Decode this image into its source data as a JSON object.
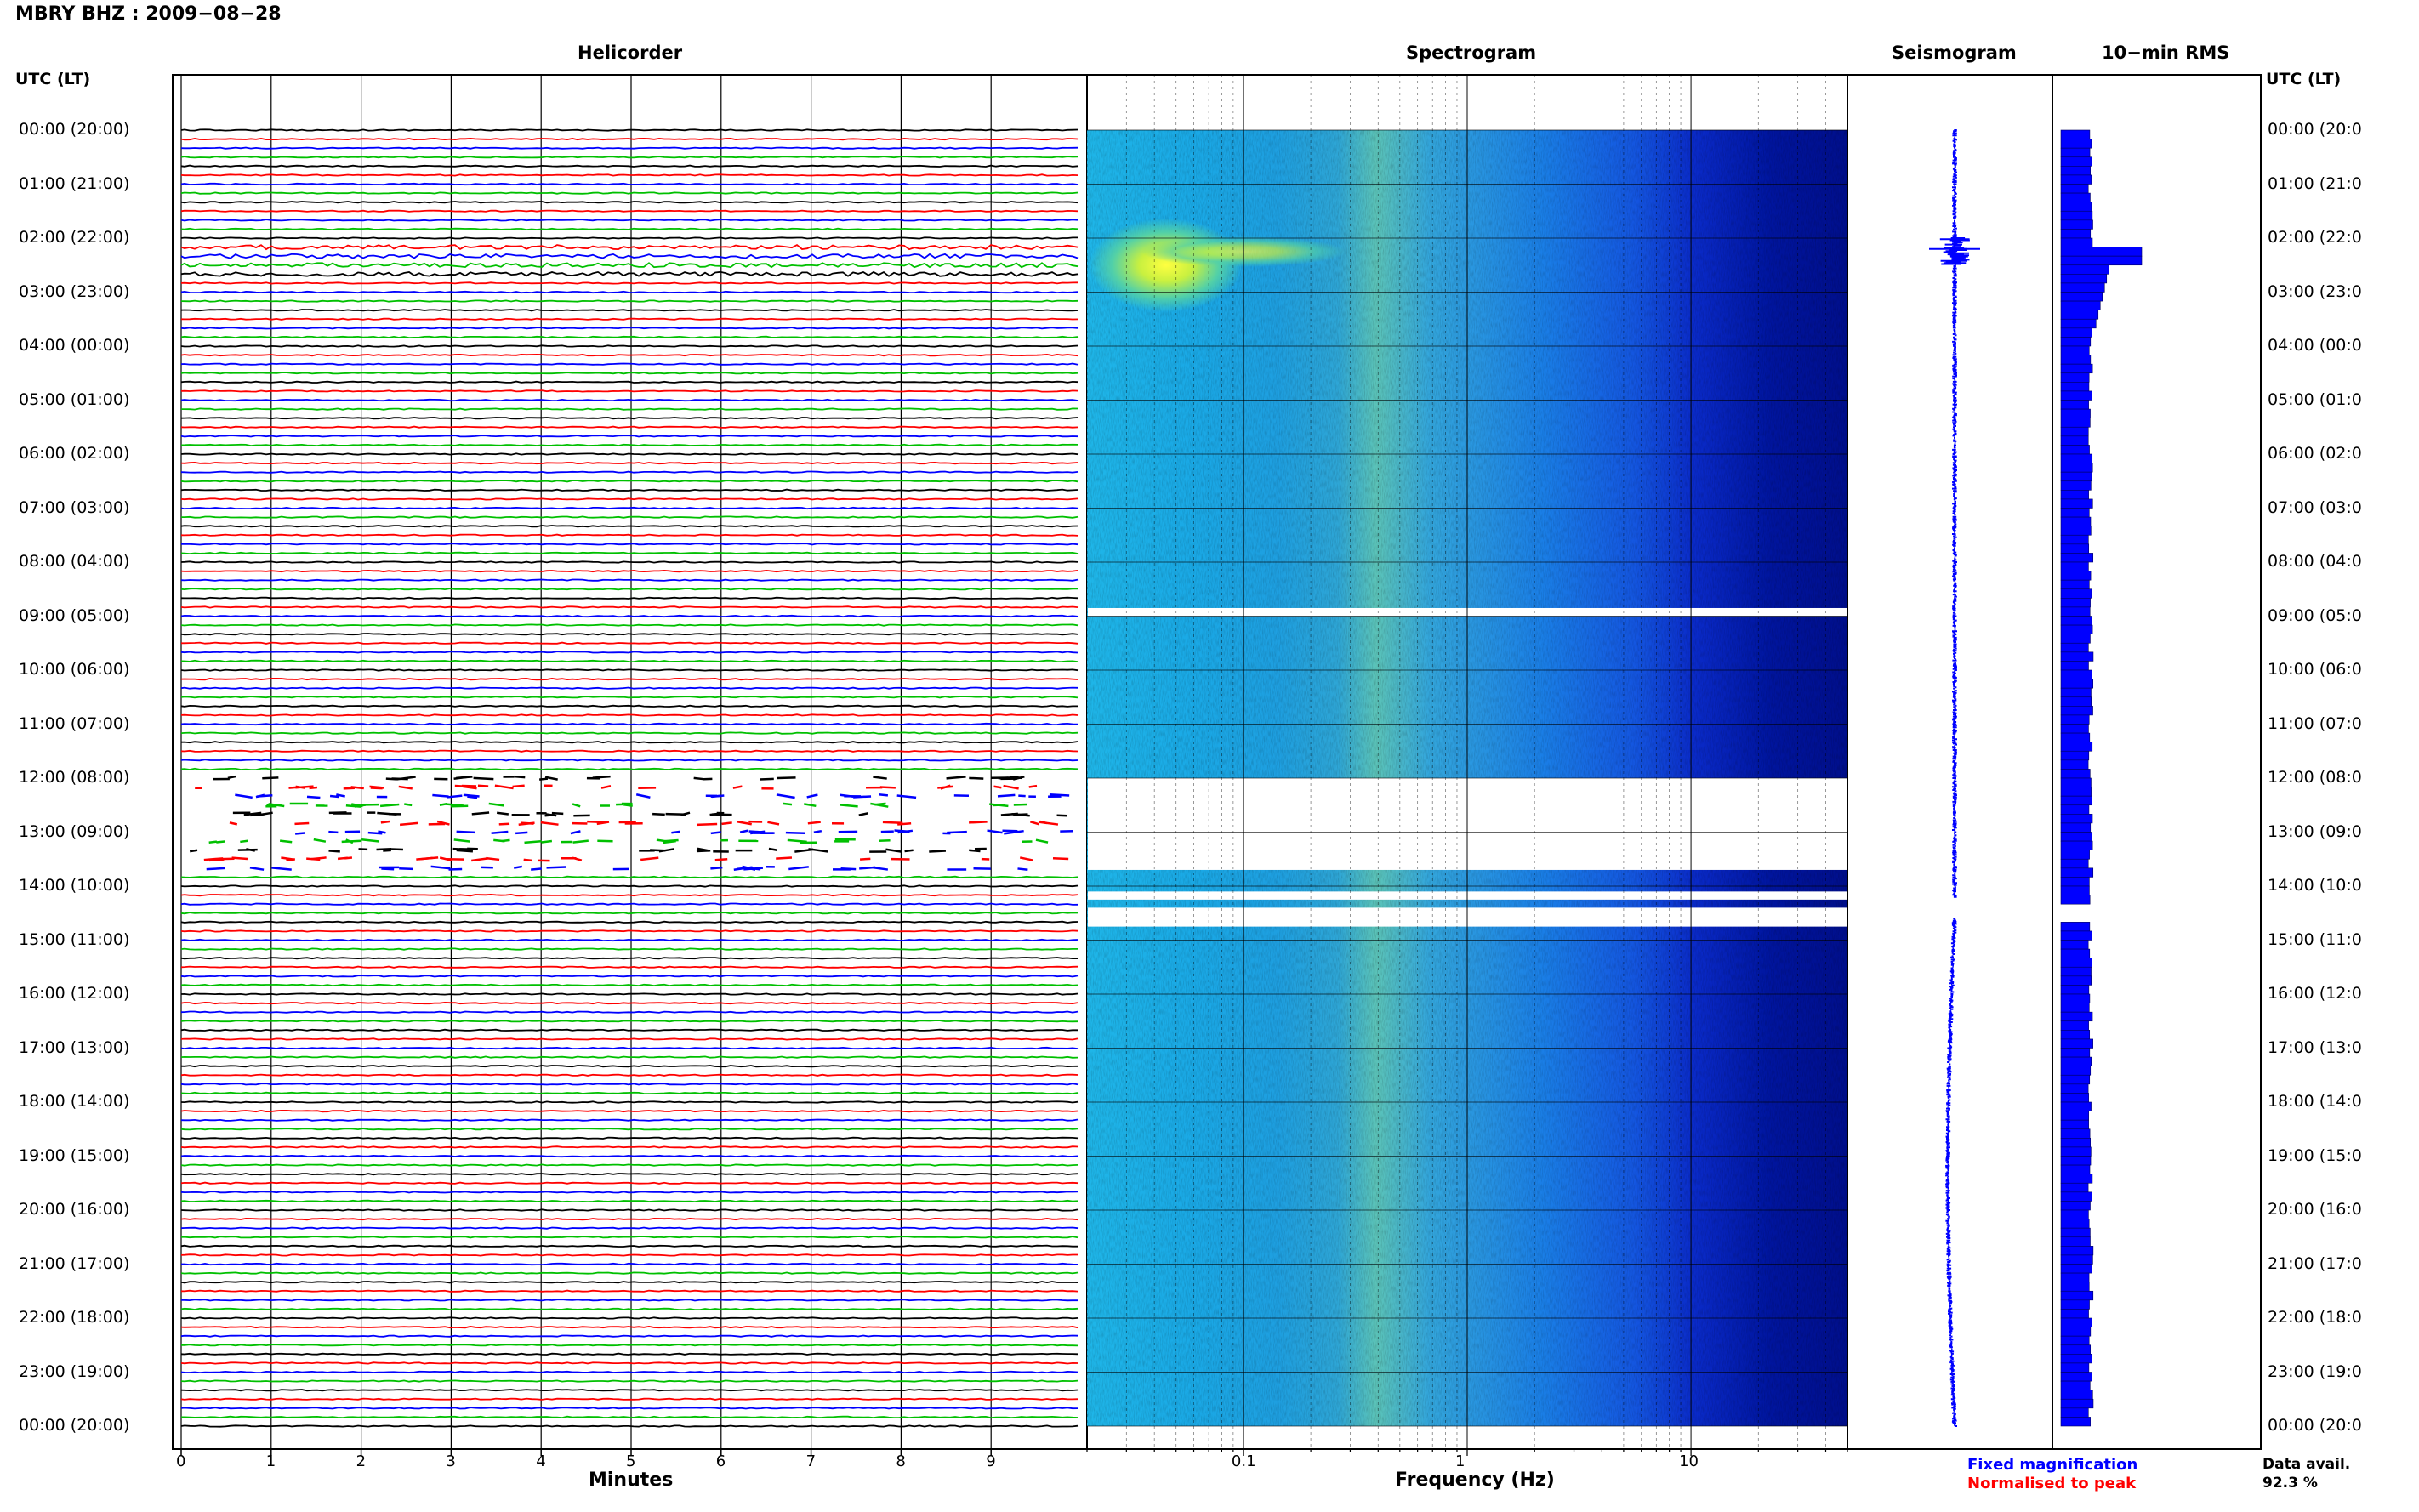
{
  "header": {
    "title": "MBRY BHZ : 2009−08−28",
    "utc_label": "UTC (LT)"
  },
  "panels": {
    "helicorder": "Helicorder",
    "spectrogram": "Spectrogram",
    "seismogram": "Seismogram",
    "rms": "10−min RMS"
  },
  "chart_data": {
    "type": "heatmap",
    "time_labels": [
      "00:00 (20:00)",
      "01:00 (21:00)",
      "02:00 (22:00)",
      "03:00 (23:00)",
      "04:00 (00:00)",
      "05:00 (01:00)",
      "06:00 (02:00)",
      "07:00 (03:00)",
      "08:00 (04:00)",
      "09:00 (05:00)",
      "10:00 (06:00)",
      "11:00 (07:00)",
      "12:00 (08:00)",
      "13:00 (09:00)",
      "14:00 (10:00)",
      "15:00 (11:00)",
      "16:00 (12:00)",
      "17:00 (13:00)",
      "18:00 (14:00)",
      "19:00 (15:00)",
      "20:00 (16:00)",
      "21:00 (17:00)",
      "22:00 (18:00)",
      "23:00 (19:00)",
      "00:00 (20:00)"
    ],
    "helicorder": {
      "xlabel": "Minutes",
      "x_ticks": [
        "0",
        "1",
        "2",
        "3",
        "4",
        "5",
        "6",
        "7",
        "8",
        "9"
      ],
      "xlim": [
        0,
        10
      ],
      "traces_per_hour": 6,
      "trace_colors": [
        "#000000",
        "#ff0000",
        "#0000ff",
        "#00c000"
      ]
    },
    "spectrogram": {
      "xlabel": "Frequency (Hz)",
      "x_ticks": [
        "0.1",
        "1",
        "10"
      ],
      "x_scale": "log",
      "xlim": [
        0.02,
        50
      ],
      "colormap": "jet",
      "gaps_hours": [
        [
          8.85,
          9.0
        ],
        [
          12.0,
          13.7
        ],
        [
          14.1,
          14.25
        ],
        [
          14.4,
          14.75
        ]
      ],
      "event_hour": 2.5
    },
    "seismogram": {
      "legend_fixed": "Fixed magnification",
      "legend_normalised": "Normalised to peak",
      "color": "#0000ff",
      "gap_hours": [
        14.2,
        14.6
      ],
      "event_hour": 2.25
    },
    "rms": {
      "color": "#0000ff",
      "bin_minutes": 10,
      "gap_hours": [
        14.2,
        14.55
      ],
      "event_hour": 2.25
    },
    "data_availability": {
      "label": "Data avail.",
      "value": "92.3 %"
    }
  }
}
